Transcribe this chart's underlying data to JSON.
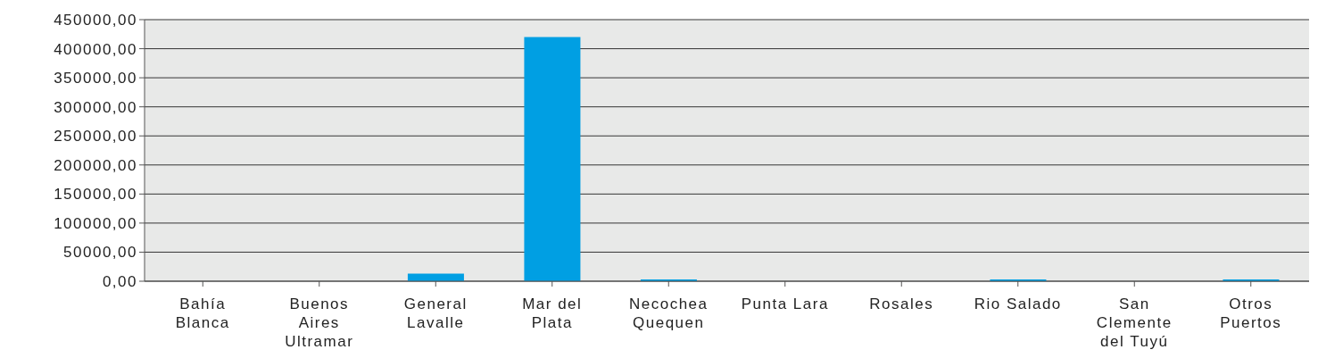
{
  "chart_data": {
    "type": "bar",
    "categories": [
      "Bahía Blanca",
      "Buenos Aires Ultramar",
      "General Lavalle",
      "Mar del Plata",
      "Necochea Quequen",
      "Punta Lara",
      "Rosales",
      "Rio Salado",
      "San Clemente del Tuyú",
      "Otros Puertos"
    ],
    "values": [
      0,
      0,
      13000,
      420000,
      3000,
      0,
      0,
      3000,
      0,
      3000
    ],
    "color": "#009fe3",
    "ylim": [
      0,
      450000
    ],
    "yticks": [
      {
        "value": 0,
        "label": "0,00"
      },
      {
        "value": 50000,
        "label": "50000,00"
      },
      {
        "value": 100000,
        "label": "100000,00"
      },
      {
        "value": 150000,
        "label": "150000,00"
      },
      {
        "value": 200000,
        "label": "200000,00"
      },
      {
        "value": 250000,
        "label": "250000,00"
      },
      {
        "value": 300000,
        "label": "300000,00"
      },
      {
        "value": 350000,
        "label": "350000,00"
      },
      {
        "value": 400000,
        "label": "400000,00"
      },
      {
        "value": 450000,
        "label": "450000,00"
      }
    ],
    "grid": "y",
    "legend": false
  }
}
